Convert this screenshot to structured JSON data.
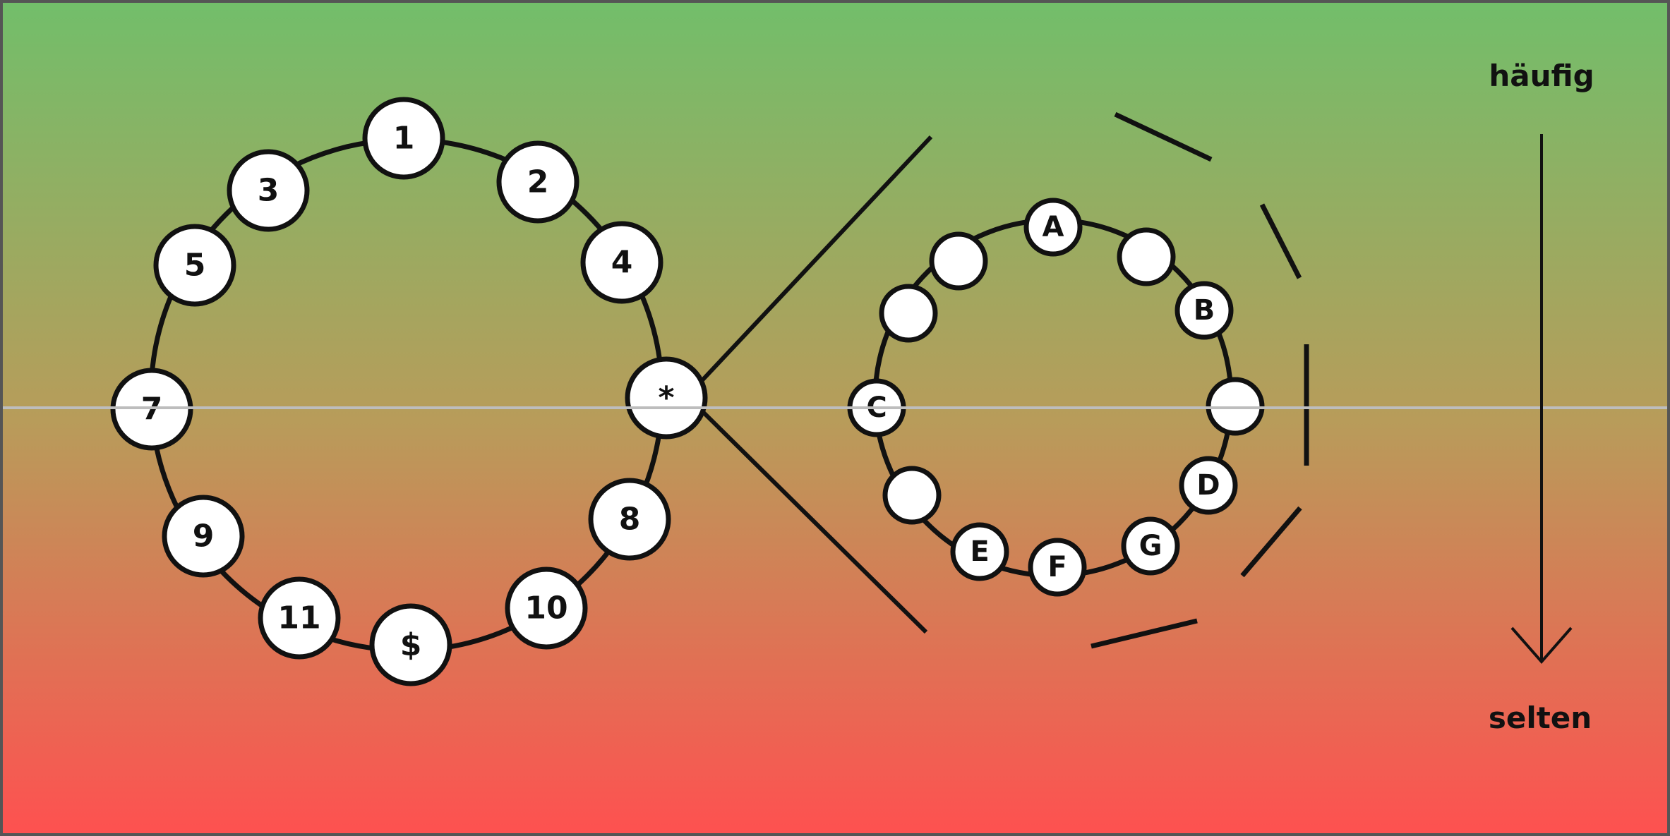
{
  "colors": {
    "gradient_top": "#72be6a",
    "gradient_mid": "#b89c5a",
    "gradient_bottom": "#ff5050",
    "stroke": "#111111",
    "node_fill": "#ffffff",
    "midline": "#bdbdbd",
    "frame": "#555555"
  },
  "legend": {
    "top_label": "häufig",
    "bottom_label": "selten"
  },
  "large_ring": {
    "nodes": [
      "1",
      "2",
      "3",
      "4",
      "5",
      "*",
      "7",
      "8",
      "9",
      "10",
      "11",
      "$"
    ]
  },
  "small_ring": {
    "nodes": [
      "A",
      "",
      "B",
      "",
      "D",
      "G",
      "F",
      "E",
      "",
      "C",
      "",
      ""
    ]
  }
}
